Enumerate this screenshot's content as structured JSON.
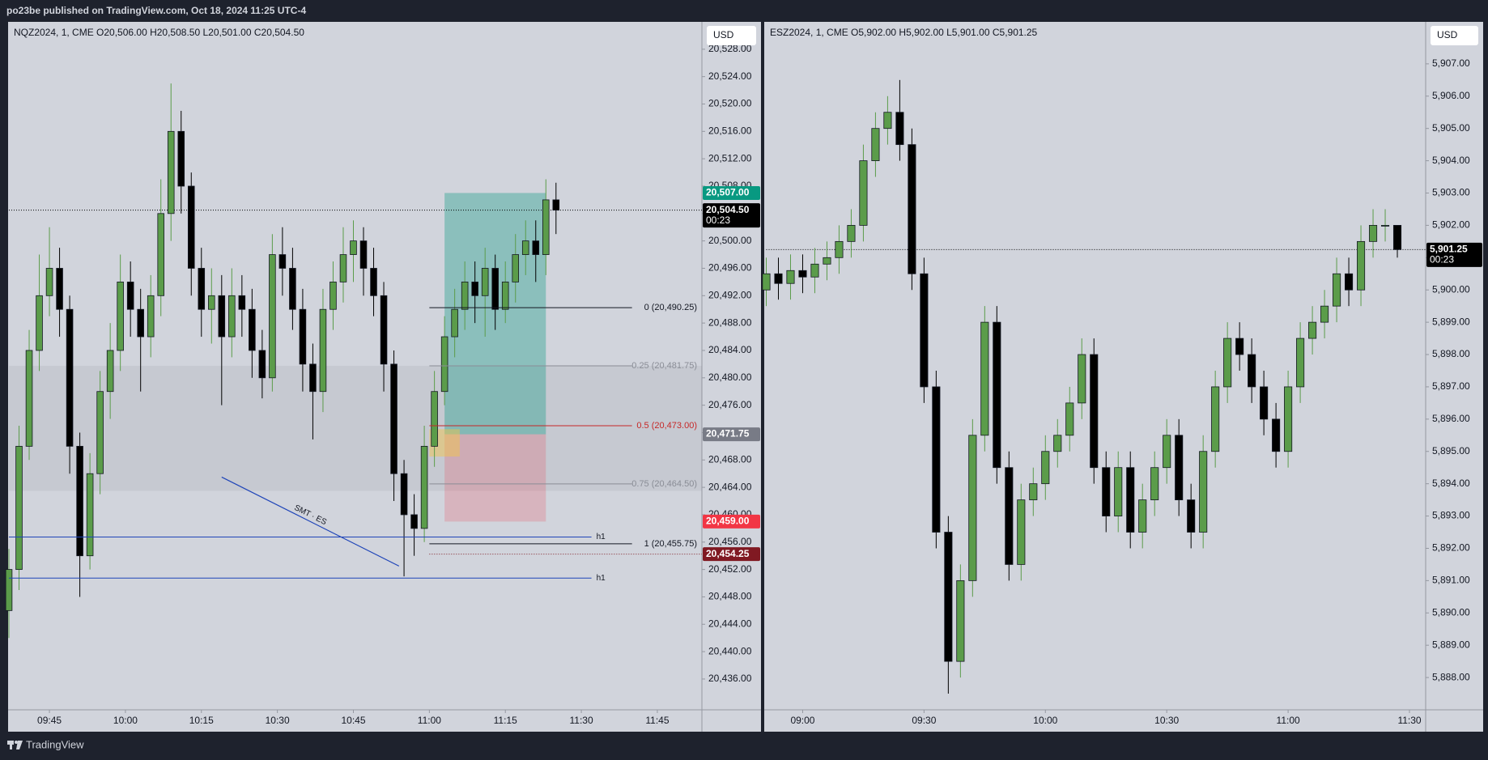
{
  "header": {
    "text": "po23be published on TradingView.com, Oct 18, 2024 11:25 UTC-4"
  },
  "footer": {
    "brand": "TradingView"
  },
  "chart_data": [
    {
      "type": "candlestick",
      "title": "NQZ2024, 1, CME  O20,506.00  H20,508.50  L20,501.00  C20,504.50",
      "currency": "USD",
      "up_color": "#5b9c4a",
      "down_color": "#000000",
      "x": [
        577,
        579,
        581,
        583,
        585,
        587,
        589,
        591,
        593,
        595,
        597,
        599,
        601,
        603,
        605,
        607,
        609,
        611,
        613,
        615,
        617,
        619,
        621,
        623,
        625,
        627,
        629,
        631,
        633,
        635,
        637,
        639,
        641,
        643,
        645,
        647,
        649,
        651,
        653,
        655,
        657,
        659,
        661,
        663,
        665,
        667,
        669,
        671,
        673,
        675,
        677,
        679,
        681,
        683,
        685
      ],
      "open": [
        20446,
        20452,
        20470,
        20484,
        20492,
        20496,
        20490,
        20470,
        20454,
        20466,
        20478,
        20484,
        20494,
        20490,
        20486,
        20492,
        20504,
        20516,
        20508,
        20496,
        20490,
        20492,
        20486,
        20492,
        20490,
        20484,
        20480,
        20498,
        20496,
        20490,
        20482,
        20478,
        20490,
        20494,
        20498,
        20500,
        20496,
        20492,
        20482,
        20466,
        20460,
        20458,
        20470,
        20478,
        20486,
        20490,
        20494,
        20492,
        20496,
        20490,
        20494,
        20498,
        20500,
        20498,
        20506
      ],
      "high": [
        20455,
        20473,
        20487,
        20498,
        20502,
        20499,
        20492,
        20472,
        20469,
        20481,
        20488,
        20498,
        20497,
        20493,
        20495,
        20509,
        20523,
        20519,
        20510,
        20499,
        20496,
        20495,
        20496,
        20495,
        20493,
        20487,
        20501,
        20502,
        20499,
        20493,
        20485,
        20493,
        20497,
        20502,
        20503,
        20502,
        20499,
        20494,
        20484,
        20468,
        20463,
        20473,
        20481,
        20489,
        20493,
        20497,
        20497,
        20499,
        20498,
        20497,
        20501,
        20503,
        20503,
        20509,
        20508.5
      ],
      "low": [
        20442,
        20449,
        20468,
        20481,
        20489,
        20486,
        20466,
        20448,
        20452,
        20463,
        20474,
        20481,
        20486,
        20478,
        20483,
        20489,
        20500,
        20504,
        20492,
        20486,
        20485,
        20476,
        20483,
        20486,
        20480,
        20477,
        20478,
        20492,
        20487,
        20478,
        20471,
        20475,
        20487,
        20491,
        20494,
        20492,
        20489,
        20478,
        20462,
        20451,
        20454,
        20456,
        20467,
        20476,
        20483,
        20487,
        20488,
        20486,
        20487,
        20488,
        20491,
        20495,
        20494,
        20495,
        20501
      ],
      "close": [
        20452,
        20470,
        20484,
        20492,
        20496,
        20490,
        20470,
        20454,
        20466,
        20478,
        20484,
        20494,
        20490,
        20486,
        20492,
        20504,
        20516,
        20508,
        20496,
        20490,
        20492,
        20486,
        20492,
        20490,
        20484,
        20480,
        20498,
        20496,
        20490,
        20482,
        20478,
        20490,
        20494,
        20498,
        20500,
        20496,
        20492,
        20482,
        20466,
        20460,
        20458,
        20470,
        20478,
        20486,
        20490,
        20494,
        20492,
        20496,
        20490,
        20494,
        20498,
        20500,
        20498,
        20506,
        20504.5
      ],
      "xlim": [
        577,
        713.8
      ],
      "ylim": [
        20431.5,
        20532
      ],
      "xticks": [
        {
          "value": 585,
          "label": "09:45"
        },
        {
          "value": 600,
          "label": "10:00"
        },
        {
          "value": 615,
          "label": "10:15"
        },
        {
          "value": 630,
          "label": "10:30"
        },
        {
          "value": 645,
          "label": "10:45"
        },
        {
          "value": 660,
          "label": "11:00"
        },
        {
          "value": 675,
          "label": "11:15"
        },
        {
          "value": 690,
          "label": "11:30"
        },
        {
          "value": 705,
          "label": "11:45"
        }
      ],
      "yticks": [
        {
          "value": 20436,
          "label": "20,436.00"
        },
        {
          "value": 20440,
          "label": "20,440.00"
        },
        {
          "value": 20444,
          "label": "20,444.00"
        },
        {
          "value": 20448,
          "label": "20,448.00"
        },
        {
          "value": 20452,
          "label": "20,452.00"
        },
        {
          "value": 20456,
          "label": "20,456.00"
        },
        {
          "value": 20460,
          "label": "20,460.00"
        },
        {
          "value": 20464,
          "label": "20,464.00"
        },
        {
          "value": 20468,
          "label": "20,468.00"
        },
        {
          "value": 20472,
          "label": "20,472.00"
        },
        {
          "value": 20476,
          "label": "20,476.00"
        },
        {
          "value": 20480,
          "label": "20,480.00"
        },
        {
          "value": 20484,
          "label": "20,484.00"
        },
        {
          "value": 20488,
          "label": "20,488.00"
        },
        {
          "value": 20492,
          "label": "20,492.00"
        },
        {
          "value": 20496,
          "label": "20,496.00"
        },
        {
          "value": 20500,
          "label": "20,500.00"
        },
        {
          "value": 20504,
          "label": "20,504.00"
        },
        {
          "value": 20508,
          "label": "20,508.00"
        },
        {
          "value": 20512,
          "label": "20,512.00"
        },
        {
          "value": 20516,
          "label": "20,516.00"
        },
        {
          "value": 20520,
          "label": "20,520.00"
        },
        {
          "value": 20524,
          "label": "20,524.00"
        },
        {
          "value": 20528,
          "label": "20,528.00"
        }
      ],
      "zone": [
        20481.75,
        20463.5
      ],
      "position": {
        "start": 663,
        "end": 683,
        "entry": 20471.75,
        "target": 20507,
        "stop": 20459
      },
      "fvg": {
        "x": [
          660,
          666
        ],
        "y": [
          20472.5,
          20468.5
        ]
      },
      "fib": {
        "x": [
          660,
          700
        ],
        "levels": [
          {
            "value": 20490.25,
            "label": "0 (20,490.25)",
            "color": "#131722"
          },
          {
            "value": 20481.75,
            "label": "0.25 (20,481.75)",
            "color": "#8a8d96"
          },
          {
            "value": 20473,
            "label": "0.5 (20,473.00)",
            "color": "#c62828"
          },
          {
            "value": 20464.5,
            "label": "0.75 (20,464.50)",
            "color": "#8a8d96"
          },
          {
            "value": 20455.75,
            "label": "1 (20,455.75)",
            "color": "#131722"
          }
        ]
      },
      "hlines": [
        {
          "value": 20456.75,
          "label": "h1",
          "x": [
            577,
            692
          ],
          "color": "#1e44b8"
        },
        {
          "value": 20450.75,
          "label": "h1",
          "x": [
            577,
            692
          ],
          "color": "#1e44b8"
        }
      ],
      "trendline": {
        "x": [
          619,
          654
        ],
        "y": [
          20465.5,
          20452.5
        ],
        "label": "SMT · ES",
        "color": "#1e44b8"
      },
      "price_tags": [
        {
          "value": 20507,
          "label": "20,507.00",
          "color": "#089981"
        },
        {
          "value": 20504.5,
          "label": "20,504.50",
          "sub": "00:23",
          "color": "#000000",
          "line_from": 577
        },
        {
          "value": 20471.75,
          "label": "20,471.75",
          "color": "#787b86"
        },
        {
          "value": 20459,
          "label": "20,459.00",
          "color": "#f23645"
        },
        {
          "value": 20454.25,
          "label": "20,454.25",
          "color": "#801922",
          "line_from": 660
        }
      ]
    },
    {
      "type": "candlestick",
      "title": "ESZ2024, 1, CME  O5,902.00  H5,902.00  L5,901.00  C5,901.25",
      "currency": "USD",
      "up_color": "#5b9c4a",
      "down_color": "#000000",
      "x": [
        531,
        534,
        537,
        540,
        543,
        546,
        549,
        552,
        555,
        558,
        561,
        564,
        567,
        570,
        573,
        576,
        579,
        582,
        585,
        588,
        591,
        594,
        597,
        600,
        603,
        606,
        609,
        612,
        615,
        618,
        621,
        624,
        627,
        630,
        633,
        636,
        639,
        642,
        645,
        648,
        651,
        654,
        657,
        660,
        663,
        666,
        669,
        672,
        675,
        678,
        681,
        684,
        687
      ],
      "open": [
        5900.0,
        5900.5,
        5900.2,
        5900.6,
        5900.4,
        5900.8,
        5901.0,
        5901.5,
        5902.0,
        5904.0,
        5905.0,
        5905.5,
        5904.5,
        5900.5,
        5897.0,
        5892.5,
        5888.5,
        5891.0,
        5895.5,
        5899.0,
        5894.5,
        5891.5,
        5893.5,
        5894.0,
        5895.0,
        5895.5,
        5896.5,
        5898.0,
        5894.5,
        5893.0,
        5894.5,
        5892.5,
        5893.5,
        5894.5,
        5895.5,
        5893.5,
        5892.5,
        5895.0,
        5897.0,
        5898.5,
        5898.0,
        5897.0,
        5896.0,
        5895.0,
        5897.0,
        5898.5,
        5899.0,
        5899.5,
        5900.5,
        5900.0,
        5901.5,
        5902.0,
        5902.0
      ],
      "high": [
        5901.0,
        5901.0,
        5901.1,
        5901.1,
        5901.3,
        5901.5,
        5902.0,
        5902.5,
        5904.5,
        5905.5,
        5906.0,
        5906.5,
        5905.0,
        5901.0,
        5897.5,
        5893.0,
        5891.5,
        5896.0,
        5899.5,
        5899.5,
        5895.0,
        5894.0,
        5894.5,
        5895.5,
        5896.0,
        5897.0,
        5898.5,
        5898.5,
        5895.0,
        5895.0,
        5895.0,
        5894.0,
        5895.0,
        5896.0,
        5896.0,
        5894.0,
        5895.5,
        5897.5,
        5899.0,
        5899.0,
        5898.5,
        5897.5,
        5896.5,
        5897.5,
        5899.0,
        5899.5,
        5900.0,
        5901.0,
        5901.0,
        5902.0,
        5902.5,
        5902.5,
        5902.0
      ],
      "low": [
        5899.5,
        5899.7,
        5899.7,
        5899.9,
        5899.9,
        5900.3,
        5900.5,
        5901.0,
        5901.5,
        5903.5,
        5904.5,
        5904.0,
        5900.0,
        5896.5,
        5892.0,
        5887.5,
        5888.0,
        5890.5,
        5895.0,
        5894.0,
        5891.0,
        5891.0,
        5893.0,
        5893.5,
        5894.5,
        5895.0,
        5896.0,
        5894.0,
        5892.5,
        5892.5,
        5892.0,
        5892.0,
        5893.0,
        5894.0,
        5893.0,
        5892.0,
        5892.0,
        5894.5,
        5896.5,
        5897.5,
        5896.5,
        5895.5,
        5894.5,
        5894.5,
        5896.5,
        5898.0,
        5898.5,
        5899.0,
        5899.5,
        5899.5,
        5901.0,
        5901.5,
        5901.0
      ],
      "close": [
        5900.5,
        5900.2,
        5900.6,
        5900.4,
        5900.8,
        5901.0,
        5901.5,
        5902.0,
        5904.0,
        5905.0,
        5905.5,
        5904.5,
        5900.5,
        5897.0,
        5892.5,
        5888.5,
        5891.0,
        5895.5,
        5899.0,
        5894.5,
        5891.5,
        5893.5,
        5894.0,
        5895.0,
        5895.5,
        5896.5,
        5898.0,
        5894.5,
        5893.0,
        5894.5,
        5892.5,
        5893.5,
        5894.5,
        5895.5,
        5893.5,
        5892.5,
        5895.0,
        5897.0,
        5898.5,
        5898.0,
        5897.0,
        5896.0,
        5895.0,
        5897.0,
        5898.5,
        5899.0,
        5899.5,
        5900.5,
        5900.0,
        5901.5,
        5902.0,
        5902.0,
        5901.25
      ],
      "xlim": [
        530.7,
        694
      ],
      "ylim": [
        5887,
        5908.3
      ],
      "xticks": [
        {
          "value": 540,
          "label": "09:00"
        },
        {
          "value": 570,
          "label": "09:30"
        },
        {
          "value": 600,
          "label": "10:00"
        },
        {
          "value": 630,
          "label": "10:30"
        },
        {
          "value": 660,
          "label": "11:00"
        },
        {
          "value": 690,
          "label": "11:30"
        }
      ],
      "yticks": [
        {
          "value": 5888,
          "label": "5,888.00"
        },
        {
          "value": 5889,
          "label": "5,889.00"
        },
        {
          "value": 5890,
          "label": "5,890.00"
        },
        {
          "value": 5891,
          "label": "5,891.00"
        },
        {
          "value": 5892,
          "label": "5,892.00"
        },
        {
          "value": 5893,
          "label": "5,893.00"
        },
        {
          "value": 5894,
          "label": "5,894.00"
        },
        {
          "value": 5895,
          "label": "5,895.00"
        },
        {
          "value": 5896,
          "label": "5,896.00"
        },
        {
          "value": 5897,
          "label": "5,897.00"
        },
        {
          "value": 5898,
          "label": "5,898.00"
        },
        {
          "value": 5899,
          "label": "5,899.00"
        },
        {
          "value": 5900,
          "label": "5,900.00"
        },
        {
          "value": 5901,
          "label": "5,901.00"
        },
        {
          "value": 5902,
          "label": "5,902.00"
        },
        {
          "value": 5903,
          "label": "5,903.00"
        },
        {
          "value": 5904,
          "label": "5,904.00"
        },
        {
          "value": 5905,
          "label": "5,905.00"
        },
        {
          "value": 5906,
          "label": "5,906.00"
        },
        {
          "value": 5907,
          "label": "5,907.00"
        }
      ],
      "price_tags": [
        {
          "value": 5901.25,
          "label": "5,901.25",
          "sub": "00:23",
          "color": "#000000",
          "line_from": 531
        }
      ]
    }
  ]
}
